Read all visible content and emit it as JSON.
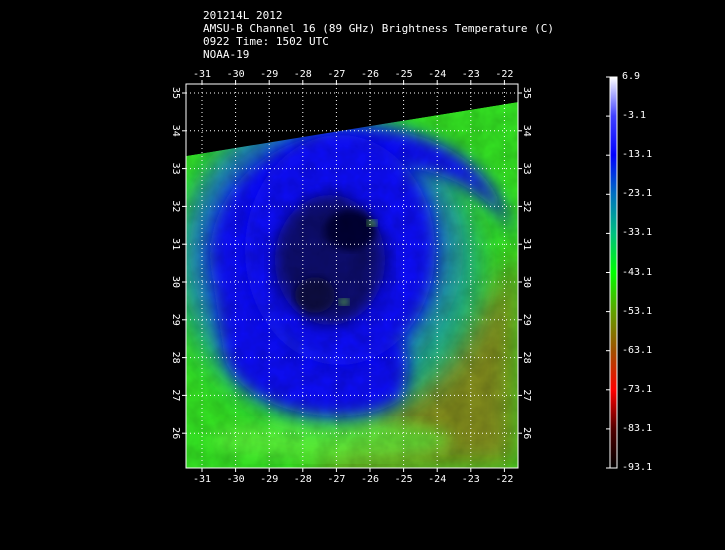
{
  "header": {
    "line1": "201214L 2012",
    "line2": "AMSU-B Channel 16 (89 GHz) Brightness Temperature (C)",
    "line3": "0922 Time: 1502 UTC",
    "line4": "NOAA-19"
  },
  "axes": {
    "lon_labels": [
      "-31",
      "-30",
      "-29",
      "-28",
      "-27",
      "-26",
      "-25",
      "-24",
      "-23",
      "-22"
    ],
    "lat_labels": [
      "35",
      "34",
      "33",
      "32",
      "31",
      "30",
      "29",
      "28",
      "27",
      "26"
    ]
  },
  "colorbar": {
    "labels": [
      "6.9",
      "-3.1",
      "-13.1",
      "-23.1",
      "-33.1",
      "-43.1",
      "-53.1",
      "-63.1",
      "-73.1",
      "-83.1",
      "-93.1"
    ],
    "colors": [
      "#ffffff",
      "#4040ff",
      "#0000ff",
      "#0070c0",
      "#00c080",
      "#00ff00",
      "#60a000",
      "#a05000",
      "#ff0000",
      "#600000",
      "#000000"
    ]
  },
  "imagery": {
    "background_color": "#000000",
    "band_color": "#44ee22",
    "cold_core_color": "#1010ee",
    "eye_color": "#0a0a4a",
    "warm_band_color": "#8a6a18"
  }
}
